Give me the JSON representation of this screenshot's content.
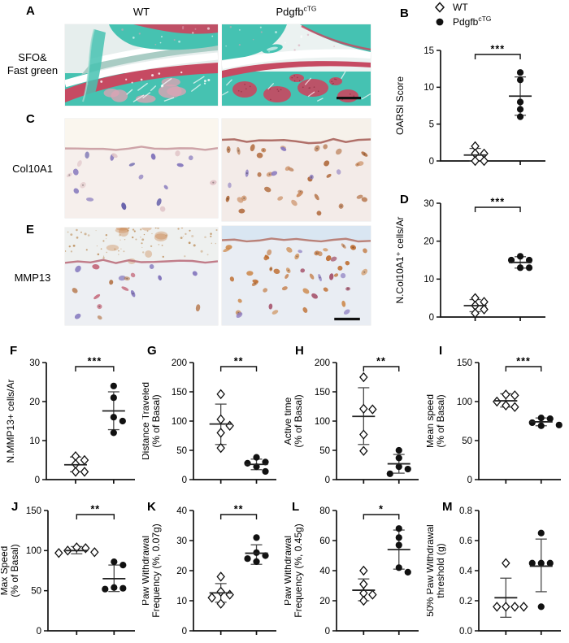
{
  "panel_labels": {
    "a": "A",
    "b": "B",
    "c": "C",
    "d": "D",
    "e": "E",
    "f": "F",
    "g": "G",
    "h": "H",
    "i": "I",
    "j": "J",
    "k": "K",
    "l": "L",
    "m": "M"
  },
  "column_headers": {
    "wt": "WT",
    "ctg_base": "Pdgfb",
    "ctg_sup": "cTG"
  },
  "row_labels": {
    "a_line1": "SFO&",
    "a_line2": "Fast green",
    "c": "Col10A1",
    "e": "MMP13"
  },
  "legend": {
    "items": [
      {
        "marker": "open-diamond",
        "label": "WT"
      },
      {
        "marker": "filled-circle",
        "label_base": "Pdgfb",
        "label_sup": "cTG"
      }
    ]
  },
  "colors": {
    "axis": "#111111",
    "marker": "#111111",
    "error_bar": "#4a4a4a",
    "safranin_red": "#c64a62",
    "fast_green_teal": "#46c2b1",
    "ihc_brown": "#b06a3c",
    "nuclei_purple": "#7a6cb8"
  },
  "micrographs": {
    "a_wt": {
      "name": "SFO-fast-green-WT",
      "type": "joint_wt",
      "bg": "#e6eeed",
      "teal": "#46c2b1",
      "teal_light": "#9edbd0",
      "muted": "#a5c9c2",
      "red": "#c64a62",
      "pink": "#d9a4b4",
      "seed": 3,
      "scalebar": false
    },
    "a_ctg": {
      "name": "SFO-fast-green-PdgfbcTG",
      "type": "joint_ctg",
      "bg": "#ebf2f1",
      "teal": "#45c2b2",
      "teal_light": "#9edbd0",
      "muted": "#a5c9c2",
      "red": "#c64a62",
      "red_dark": "#8e2f44",
      "pink": "#d9a4b4",
      "seed": 8,
      "scalebar": true
    },
    "c_wt": {
      "name": "Col10A1-WT",
      "type": "ihc",
      "bg": "#f6efec",
      "bg_top": "#faf6ee",
      "surface_color": "#c99ba0",
      "surface_y": 0.3,
      "seed": 11,
      "scalebar": false,
      "cells": [
        {
          "color": "#7a6cb8",
          "n": 9
        },
        {
          "color": "#5d58a6",
          "n": 4
        },
        {
          "color": "#e0c4c8",
          "n": 7
        }
      ]
    },
    "c_ctg": {
      "name": "Col10A1-PdgfbcTG",
      "type": "ihc",
      "bg": "#f3ebe8",
      "bg_top": "#f6f1ea",
      "surface_color": "#a8625b",
      "surface_y": 0.22,
      "seed": 23,
      "scalebar": false,
      "cells": [
        {
          "color": "#b06a3c",
          "n": 22
        },
        {
          "color": "#c98a5e",
          "n": 11
        },
        {
          "color": "#8a7abf",
          "n": 6
        }
      ]
    },
    "e_wt": {
      "name": "MMP13-WT",
      "type": "ihc",
      "bg": "#edeff3",
      "bg_top": "#eef0ef",
      "surface_color": "#bb6f7d",
      "surface_y": 0.35,
      "seed": 5,
      "scalebar": false,
      "debris": {
        "color": "#c77c3e",
        "n": 9
      },
      "top_specks": {
        "color": "#b58045",
        "n": 70
      },
      "cells": [
        {
          "color": "#7a6cb8",
          "n": 7
        },
        {
          "color": "#c4687a",
          "n": 5
        },
        {
          "color": "#b5764a",
          "n": 5
        }
      ]
    },
    "e_ctg": {
      "name": "MMP13-PdgfbcTG",
      "type": "ihc",
      "bg": "#e9edf3",
      "bg_top": "#d9e6f2",
      "surface_color": "#b5766b",
      "surface_y": 0.14,
      "seed": 42,
      "scalebar": true,
      "cells": [
        {
          "color": "#bf7034",
          "n": 24
        },
        {
          "color": "#cd8a4e",
          "n": 12
        },
        {
          "color": "#8a7abf",
          "n": 5
        },
        {
          "color": "#a5526b",
          "n": 6
        }
      ]
    }
  },
  "chart_data": [
    {
      "id": "B",
      "type": "scatter",
      "ylabel_lines": [
        "OARSI Score"
      ],
      "ylim": [
        0,
        15
      ],
      "yticks": [
        0,
        5,
        10,
        15
      ],
      "ytick_labels": [
        "0",
        "5",
        "10",
        "15"
      ],
      "significance": "***",
      "groups": [
        {
          "name": "WT",
          "marker": "open-diamond",
          "values": [
            2,
            1,
            1,
            0,
            0
          ],
          "mean": 0.8,
          "err_low": 0,
          "err_high": 1.7
        },
        {
          "name": "PdgfbcTG",
          "marker": "filled-circle",
          "values": [
            12,
            11,
            8,
            7,
            6
          ],
          "mean": 8.8,
          "err_low": 6.2,
          "err_high": 11.4
        }
      ]
    },
    {
      "id": "D",
      "type": "scatter",
      "ylabel_lines": [
        "N.Col10A1⁺ cells/Ar"
      ],
      "ylim": [
        0,
        30
      ],
      "yticks": [
        0,
        10,
        20,
        30
      ],
      "ytick_labels": [
        "0",
        "10",
        "20",
        "30"
      ],
      "significance": "***",
      "groups": [
        {
          "name": "WT",
          "marker": "open-diamond",
          "values": [
            5,
            4,
            3,
            2,
            1
          ],
          "mean": 3,
          "err_low": 1.4,
          "err_high": 4.6
        },
        {
          "name": "PdgfbcTG",
          "marker": "filled-circle",
          "values": [
            16,
            15,
            15,
            13,
            13
          ],
          "mean": 14.4,
          "err_low": 12.9,
          "err_high": 15.9
        }
      ]
    },
    {
      "id": "F",
      "type": "scatter",
      "ylabel_lines": [
        "N.MMP13+ cells/Ar"
      ],
      "ylim": [
        0,
        30
      ],
      "yticks": [
        0,
        10,
        20,
        30
      ],
      "ytick_labels": [
        "0",
        "10",
        "20",
        "30"
      ],
      "significance": "***",
      "groups": [
        {
          "name": "WT",
          "marker": "open-diamond",
          "values": [
            6,
            5,
            4,
            2,
            2
          ],
          "mean": 3.8,
          "err_low": 2.0,
          "err_high": 5.8
        },
        {
          "name": "PdgfbcTG",
          "marker": "filled-circle",
          "values": [
            24,
            21,
            16,
            15,
            12
          ],
          "mean": 17.6,
          "err_low": 12.8,
          "err_high": 22.5
        }
      ]
    },
    {
      "id": "G",
      "type": "scatter",
      "ylabel_lines": [
        "Distance Traveled",
        "(% of Basal)"
      ],
      "ylim": [
        0,
        200
      ],
      "yticks": [
        0,
        50,
        100,
        150,
        200
      ],
      "ytick_labels": [
        "0",
        "50",
        "100",
        "150",
        "200"
      ],
      "significance": "**",
      "groups": [
        {
          "name": "WT",
          "marker": "open-diamond",
          "values": [
            146,
            103,
            92,
            80,
            54
          ],
          "mean": 95,
          "err_low": 60,
          "err_high": 129
        },
        {
          "name": "PdgfbcTG",
          "marker": "filled-circle",
          "values": [
            38,
            30,
            28,
            22,
            14
          ],
          "mean": 26,
          "err_low": 17,
          "err_high": 35
        }
      ]
    },
    {
      "id": "H",
      "type": "scatter",
      "ylabel_lines": [
        "Active time",
        "(% of Basal)"
      ],
      "ylim": [
        0,
        200
      ],
      "yticks": [
        0,
        50,
        100,
        150,
        200
      ],
      "ytick_labels": [
        "0",
        "50",
        "100",
        "150",
        "200"
      ],
      "significance": "**",
      "groups": [
        {
          "name": "WT",
          "marker": "open-diamond",
          "values": [
            175,
            121,
            120,
            77,
            49
          ],
          "mean": 108,
          "err_low": 60,
          "err_high": 157
        },
        {
          "name": "PdgfbcTG",
          "marker": "filled-circle",
          "values": [
            50,
            37,
            22,
            18,
            10
          ],
          "mean": 27,
          "err_low": 11,
          "err_high": 43
        }
      ]
    },
    {
      "id": "I",
      "type": "scatter",
      "ylabel_lines": [
        "Mean speed",
        "(% of Basal)"
      ],
      "ylim": [
        0,
        150
      ],
      "yticks": [
        0,
        50,
        100,
        150
      ],
      "ytick_labels": [
        "0",
        "50",
        "100",
        "150"
      ],
      "significance": "***",
      "groups": [
        {
          "name": "WT",
          "marker": "open-diamond",
          "values": [
            109,
            108,
            100,
            95,
            93
          ],
          "mean": 101,
          "err_low": 93,
          "err_high": 110
        },
        {
          "name": "PdgfbcTG",
          "marker": "filled-circle",
          "values": [
            79,
            78,
            73,
            70,
            69
          ],
          "mean": 74,
          "err_low": 69,
          "err_high": 79
        }
      ]
    },
    {
      "id": "J",
      "type": "scatter",
      "ylabel_lines": [
        "Max Speed",
        "(% of Basal)"
      ],
      "ylim": [
        0,
        150
      ],
      "yticks": [
        0,
        50,
        100,
        150
      ],
      "ytick_labels": [
        "0",
        "50",
        "100",
        "150"
      ],
      "significance": "**",
      "groups": [
        {
          "name": "WT",
          "marker": "open-diamond",
          "values": [
            104,
            103,
            100,
            98,
            97
          ],
          "mean": 100,
          "err_low": 96,
          "err_high": 105
        },
        {
          "name": "PdgfbcTG",
          "marker": "filled-circle",
          "values": [
            86,
            82,
            54,
            53,
            52
          ],
          "mean": 65,
          "err_low": 49,
          "err_high": 82
        }
      ]
    },
    {
      "id": "K",
      "type": "scatter",
      "ylabel_lines": [
        "Paw Withdrawal",
        "Frequency (%, 0.07g)"
      ],
      "ylim": [
        0,
        40
      ],
      "yticks": [
        0,
        10,
        20,
        30,
        40
      ],
      "ytick_labels": [
        "0",
        "10",
        "20",
        "30",
        "40"
      ],
      "significance": "**",
      "groups": [
        {
          "name": "WT",
          "marker": "open-diamond",
          "values": [
            18,
            13,
            12,
            11,
            9
          ],
          "mean": 12.6,
          "err_low": 9.5,
          "err_high": 15.7
        },
        {
          "name": "PdgfbcTG",
          "marker": "filled-circle",
          "values": [
            31,
            26,
            25,
            24,
            23
          ],
          "mean": 25.8,
          "err_low": 22.1,
          "err_high": 28.6
        }
      ]
    },
    {
      "id": "L",
      "type": "scatter",
      "ylabel_lines": [
        "Paw Withdrawal",
        "Frequency (%, 0.45g)"
      ],
      "ylim": [
        0,
        80
      ],
      "yticks": [
        0,
        20,
        40,
        60,
        80
      ],
      "ytick_labels": [
        "0",
        "20",
        "40",
        "60",
        "80"
      ],
      "significance": "*",
      "groups": [
        {
          "name": "WT",
          "marker": "open-diamond",
          "values": [
            40,
            31,
            25,
            24,
            20
          ],
          "mean": 27,
          "err_low": 20,
          "err_high": 34.5
        },
        {
          "name": "PdgfbcTG",
          "marker": "filled-circle",
          "values": [
            68,
            62,
            57,
            42,
            39
          ],
          "mean": 54,
          "err_low": 41,
          "err_high": 67
        }
      ]
    },
    {
      "id": "M",
      "type": "scatter",
      "ylabel_lines": [
        "50% Paw Withdrawal",
        "threshold (g)"
      ],
      "ylim": [
        0,
        0.8
      ],
      "yticks": [
        0,
        0.2,
        0.4,
        0.6,
        0.8
      ],
      "ytick_labels": [
        "0.0",
        "0.2",
        "0.4",
        "0.6",
        "0.8"
      ],
      "significance": null,
      "groups": [
        {
          "name": "WT",
          "marker": "open-diamond",
          "values": [
            0.45,
            0.16,
            0.16,
            0.16,
            0.16
          ],
          "mean": 0.22,
          "err_low": 0.09,
          "err_high": 0.35
        },
        {
          "name": "PdgfbcTG",
          "marker": "filled-circle",
          "values": [
            0.65,
            0.45,
            0.45,
            0.45,
            0.16
          ],
          "mean": 0.43,
          "err_low": 0.26,
          "err_high": 0.61
        }
      ]
    }
  ]
}
